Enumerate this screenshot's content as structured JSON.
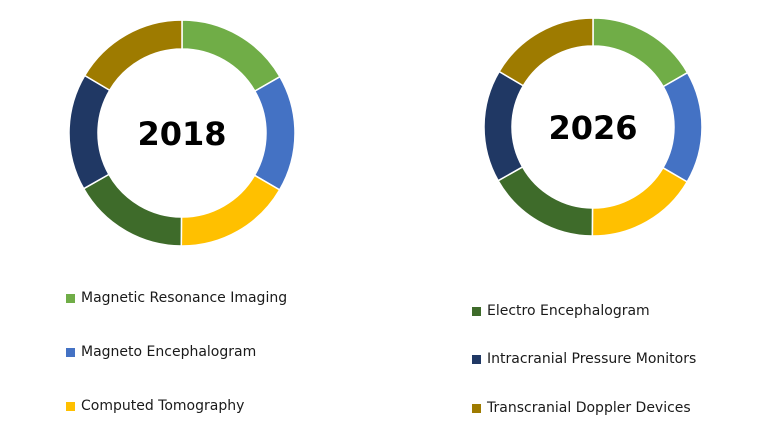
{
  "chart_data": {
    "type": "pie",
    "style": "donut",
    "charts": [
      {
        "label": "2018"
      },
      {
        "label": "2026"
      }
    ],
    "categories": [
      "Magnetic Resonance Imaging",
      "Magneto Encephalogram",
      "Computed Tomography",
      "Electro Encephalogram",
      "Intracranial Pressure Monitors",
      "Transcranial Doppler Devices"
    ],
    "colors": [
      "#70ad47",
      "#4472c4",
      "#ffc000",
      "#3e6b2a",
      "#203864",
      "#9e7b00"
    ],
    "series": [
      {
        "values": [
          16.7,
          16.7,
          16.7,
          16.7,
          16.7,
          16.5
        ]
      },
      {
        "values": [
          16.7,
          16.7,
          16.7,
          16.7,
          16.7,
          16.5
        ]
      }
    ],
    "legend_placement": "bottom"
  }
}
